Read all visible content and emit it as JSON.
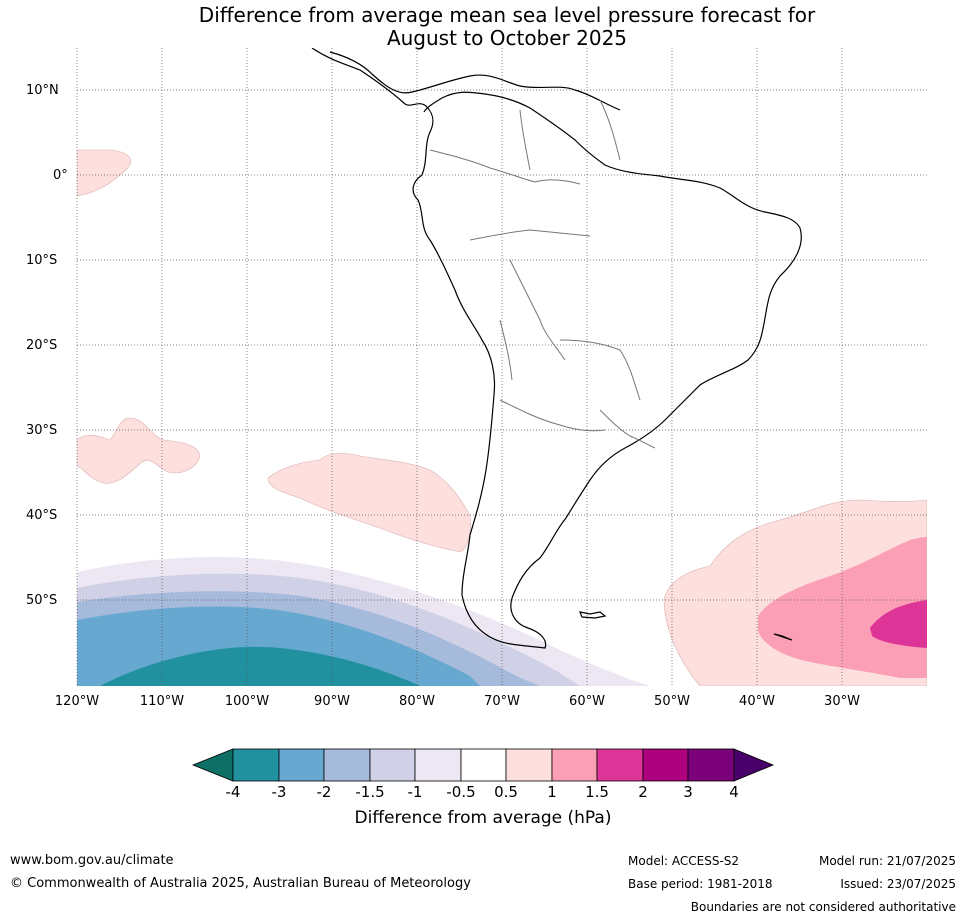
{
  "title_line1": "Difference from average mean sea level pressure forecast for",
  "title_line2": "August to October 2025",
  "lat_labels": [
    "10°N",
    "0°",
    "10°S",
    "20°S",
    "30°S",
    "40°S",
    "50°S"
  ],
  "lon_labels": [
    "120°W",
    "110°W",
    "100°W",
    "90°W",
    "80°W",
    "70°W",
    "60°W",
    "50°W",
    "40°W",
    "30°W"
  ],
  "colorbar": {
    "ticks": [
      "-4",
      "-3",
      "-2",
      "-1.5",
      "-1",
      "-0.5",
      "0.5",
      "1",
      "1.5",
      "2",
      "3",
      "4"
    ],
    "label": "Difference from average (hPa)",
    "colors": [
      "#0e6f64",
      "#2191a0",
      "#66a8cf",
      "#a6badb",
      "#d0d1e6",
      "#ece7f2",
      "#ffffff",
      "#fde0dd",
      "#fa9fb5",
      "#dd3497",
      "#ae017e",
      "#7a0177",
      "#49006a"
    ]
  },
  "footer": {
    "url": "www.bom.gov.au/climate",
    "copyright": "© Commonwealth of Australia 2025, Australian Bureau of Meteorology",
    "model": "Model: ACCESS-S2",
    "base_period": "Base period: 1981-2018",
    "model_run": "Model run: 21/07/2025",
    "issued": "Issued: 23/07/2025",
    "disclaimer": "Boundaries are not considered authoritative"
  }
}
